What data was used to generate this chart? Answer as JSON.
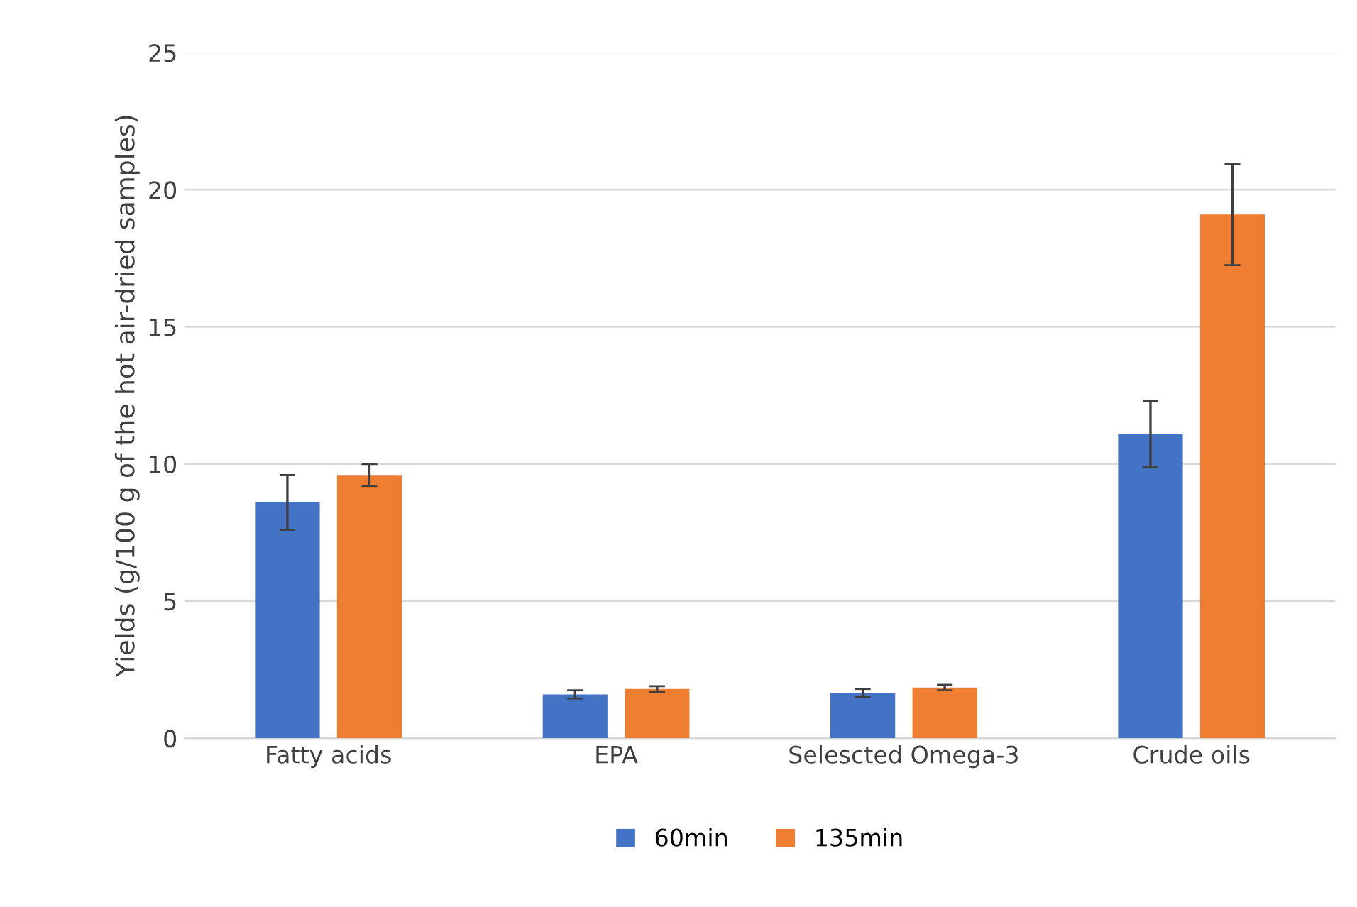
{
  "chart_data": {
    "type": "bar",
    "ylabel": "Yields (g/100 g of the hot air-dried samples)",
    "categories": [
      "Fatty acids",
      "EPA",
      "Selescted Omega-3",
      "Crude oils"
    ],
    "series": [
      {
        "name": "60min",
        "color": "#4472c4",
        "values": [
          8.6,
          1.6,
          1.65,
          11.1
        ],
        "errors": [
          1.0,
          0.15,
          0.15,
          1.2
        ]
      },
      {
        "name": "135min",
        "color": "#ed7d31",
        "values": [
          9.6,
          1.8,
          1.85,
          19.1
        ],
        "errors": [
          0.4,
          0.1,
          0.1,
          1.85
        ]
      }
    ],
    "ylim": [
      0,
      25
    ],
    "yticks": [
      0,
      5,
      10,
      15,
      20,
      25
    ],
    "grid": "y",
    "legend": "bottom"
  }
}
